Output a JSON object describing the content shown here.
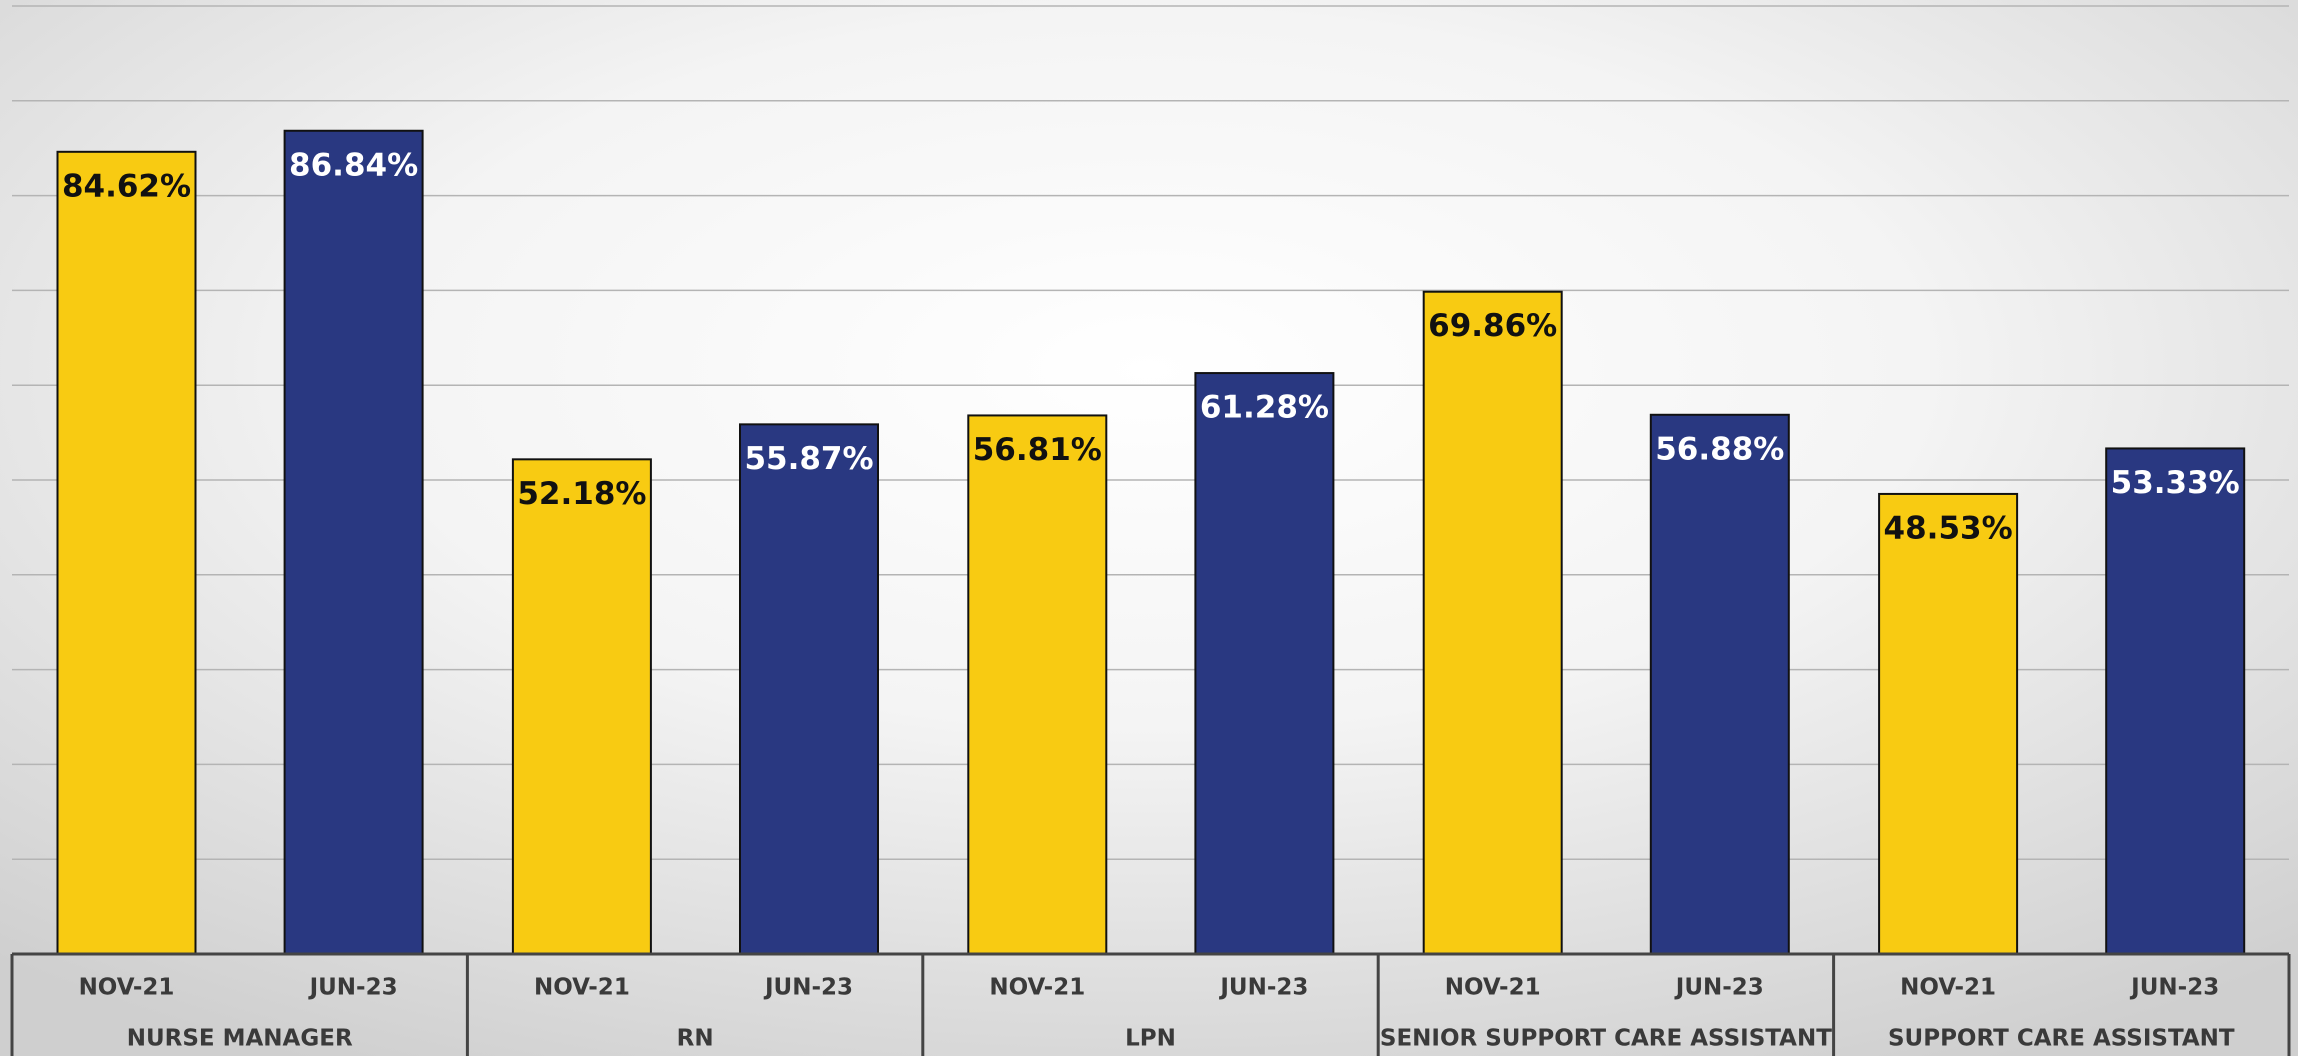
{
  "chart_data": {
    "type": "bar",
    "categories": [
      "NURSE MANAGER",
      "RN",
      "LPN",
      "SENIOR SUPPORT CARE ASSISTANT",
      "SUPPORT CARE ASSISTANT"
    ],
    "series": [
      {
        "name": "NOV-21",
        "color": "#f8cb12",
        "values": [
          84.62,
          52.18,
          56.81,
          69.86,
          48.53
        ],
        "value_labels": [
          "84.62%",
          "52.18%",
          "56.81%",
          "69.86%",
          "48.53%"
        ]
      },
      {
        "name": "JUN-23",
        "color": "#293881",
        "values": [
          86.84,
          55.87,
          61.28,
          56.88,
          53.33
        ],
        "value_labels": [
          "86.84%",
          "55.87%",
          "61.28%",
          "56.88%",
          "53.33%"
        ]
      }
    ],
    "ylim": [
      0,
      100
    ],
    "yticks": [
      0,
      10,
      20,
      30,
      40,
      50,
      60,
      70,
      80,
      90,
      100
    ],
    "grid": true
  }
}
